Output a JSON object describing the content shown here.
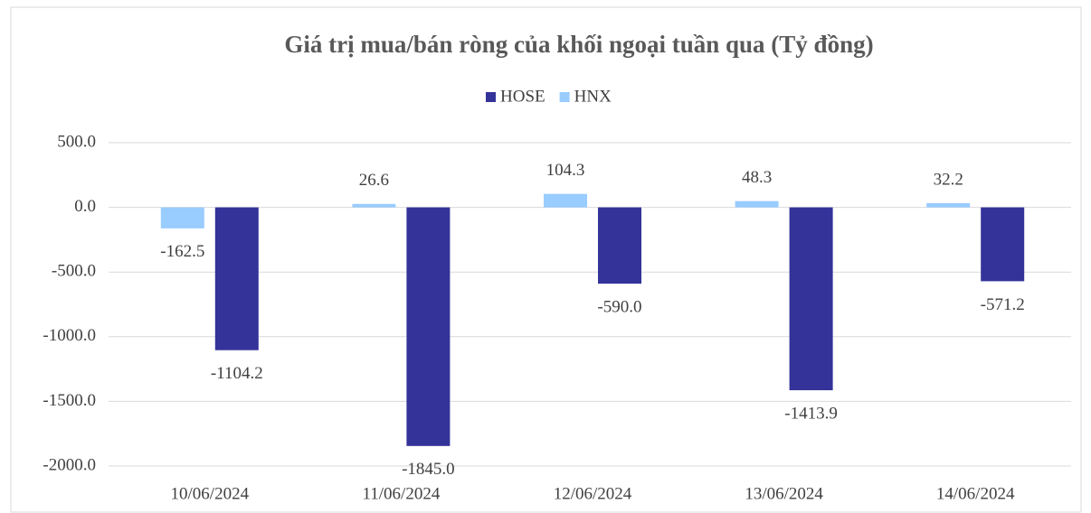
{
  "chart_data": {
    "type": "bar",
    "title": "Giá trị mua/bán ròng của khối ngoại tuần qua (Tỷ đồng)",
    "categories": [
      "10/06/2024",
      "11/06/2024",
      "12/06/2024",
      "13/06/2024",
      "14/06/2024"
    ],
    "series": [
      {
        "name": "HOSE",
        "color": "#333399",
        "values": [
          -1104.2,
          -1845.0,
          -590.0,
          -1413.9,
          -571.2
        ],
        "value_labels": [
          "-1104.2",
          "-1845.0",
          "-590.0",
          "-1413.9",
          "-571.2"
        ]
      },
      {
        "name": "HNX",
        "color": "#99ccff",
        "values": [
          -162.5,
          26.6,
          104.3,
          48.3,
          32.2
        ],
        "value_labels": [
          "-162.5",
          "26.6",
          "104.3",
          "48.3",
          "32.2"
        ]
      }
    ],
    "ylim": [
      -2000,
      500
    ],
    "yticks": [
      {
        "value": 500,
        "label": "500.0"
      },
      {
        "value": 0,
        "label": "0.0"
      },
      {
        "value": -500,
        "label": "-500.0"
      },
      {
        "value": -1000,
        "label": "-1000.0"
      },
      {
        "value": -1500,
        "label": "-1500.0"
      },
      {
        "value": -2000,
        "label": "-2000.0"
      }
    ],
    "grid": true,
    "legend": "top"
  }
}
